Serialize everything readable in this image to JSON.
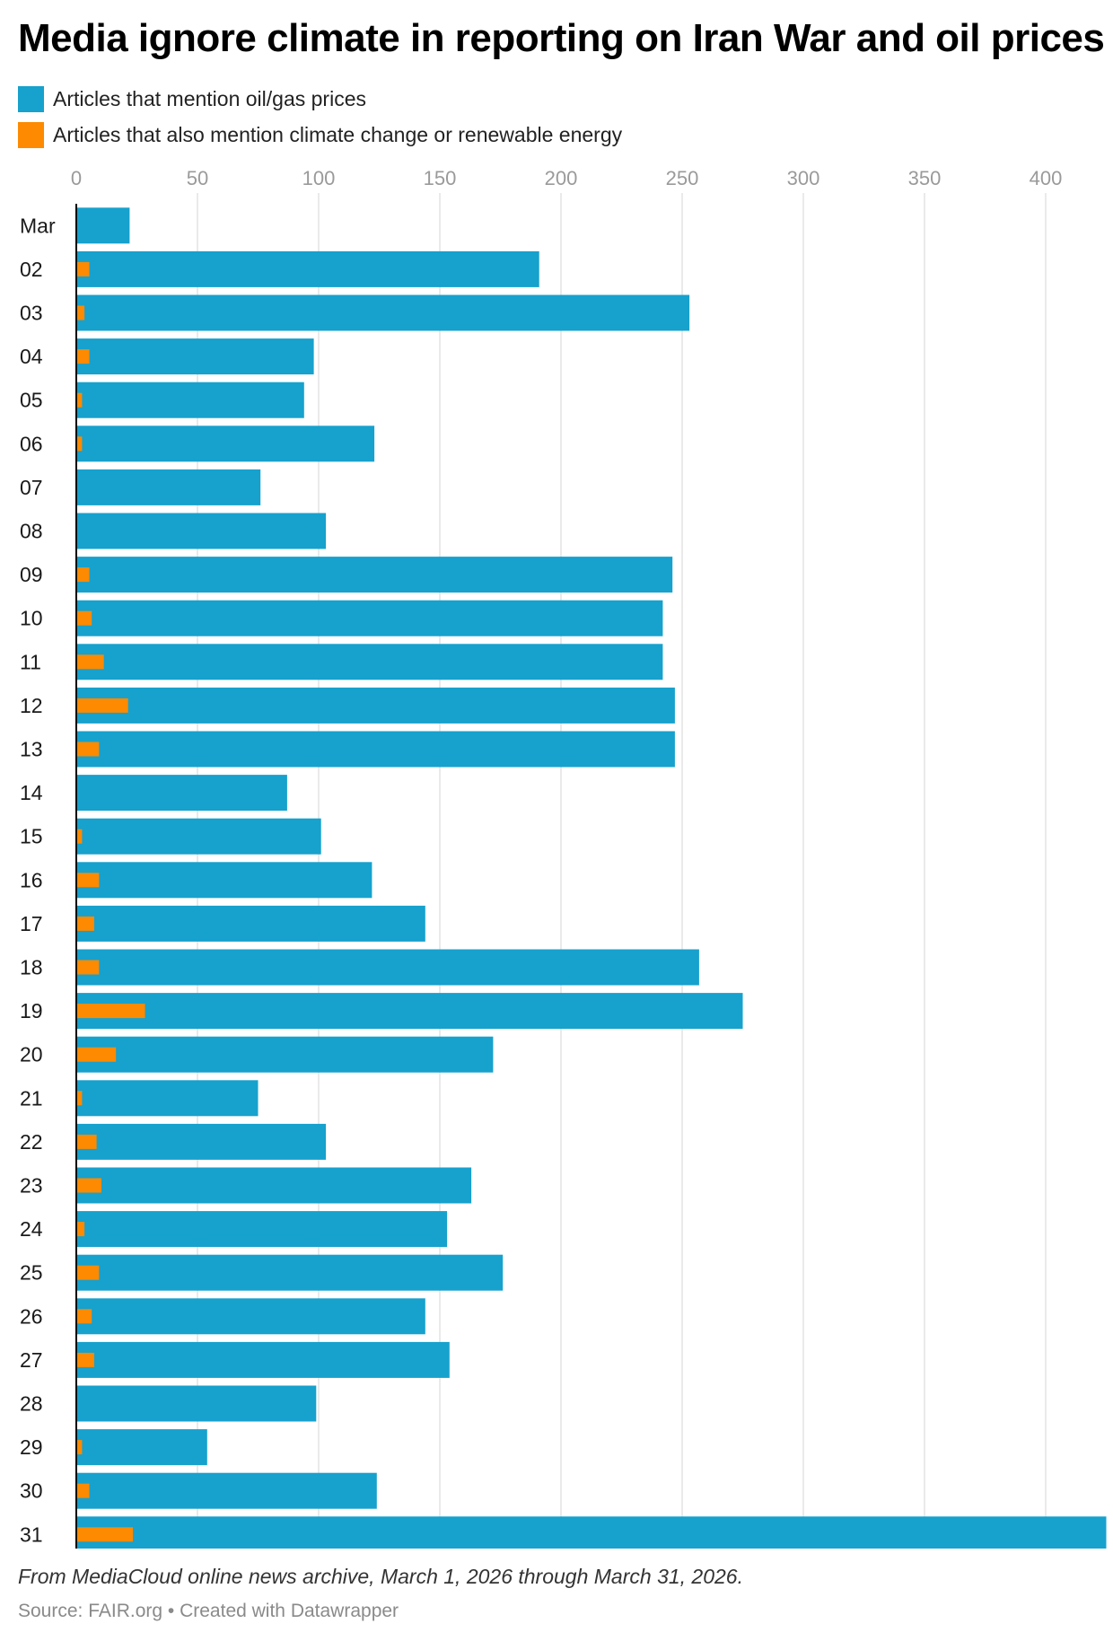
{
  "colors": {
    "oil": "#17a1cd",
    "climate": "#fd8a00",
    "grid": "#e3e3e3",
    "axis": "#000000"
  },
  "chart_data": {
    "type": "bar",
    "orientation": "horizontal",
    "title": "Media ignore climate in reporting on Iran War and oil prices",
    "xlim": [
      0,
      425
    ],
    "xticks": [
      0,
      50,
      100,
      150,
      200,
      250,
      300,
      350,
      400
    ],
    "grid": true,
    "legend_position": "top-left",
    "categories": [
      "Mar",
      "02",
      "03",
      "04",
      "05",
      "06",
      "07",
      "08",
      "09",
      "10",
      "11",
      "12",
      "13",
      "14",
      "15",
      "16",
      "17",
      "18",
      "19",
      "20",
      "21",
      "22",
      "23",
      "24",
      "25",
      "26",
      "27",
      "28",
      "29",
      "30",
      "31"
    ],
    "series": [
      {
        "name": "Articles that mention oil/gas prices",
        "values": [
          22,
          191,
          253,
          98,
          94,
          123,
          76,
          103,
          246,
          242,
          242,
          247,
          247,
          87,
          101,
          122,
          144,
          257,
          275,
          172,
          75,
          103,
          163,
          153,
          176,
          144,
          154,
          99,
          54,
          124,
          426
        ]
      },
      {
        "name": "Articles that also mention climate change or renewable energy",
        "values": [
          0,
          5,
          3,
          5,
          2,
          2,
          0,
          0,
          5,
          6,
          11,
          21,
          9,
          0,
          2,
          9,
          7,
          9,
          28,
          16,
          2,
          8,
          10,
          3,
          9,
          6,
          7,
          0,
          2,
          5,
          23
        ]
      }
    ]
  },
  "footer": {
    "notes": "From MediaCloud online news archive, March 1, 2026 through March 31, 2026.",
    "source": "Source: FAIR.org • Created with Datawrapper"
  }
}
